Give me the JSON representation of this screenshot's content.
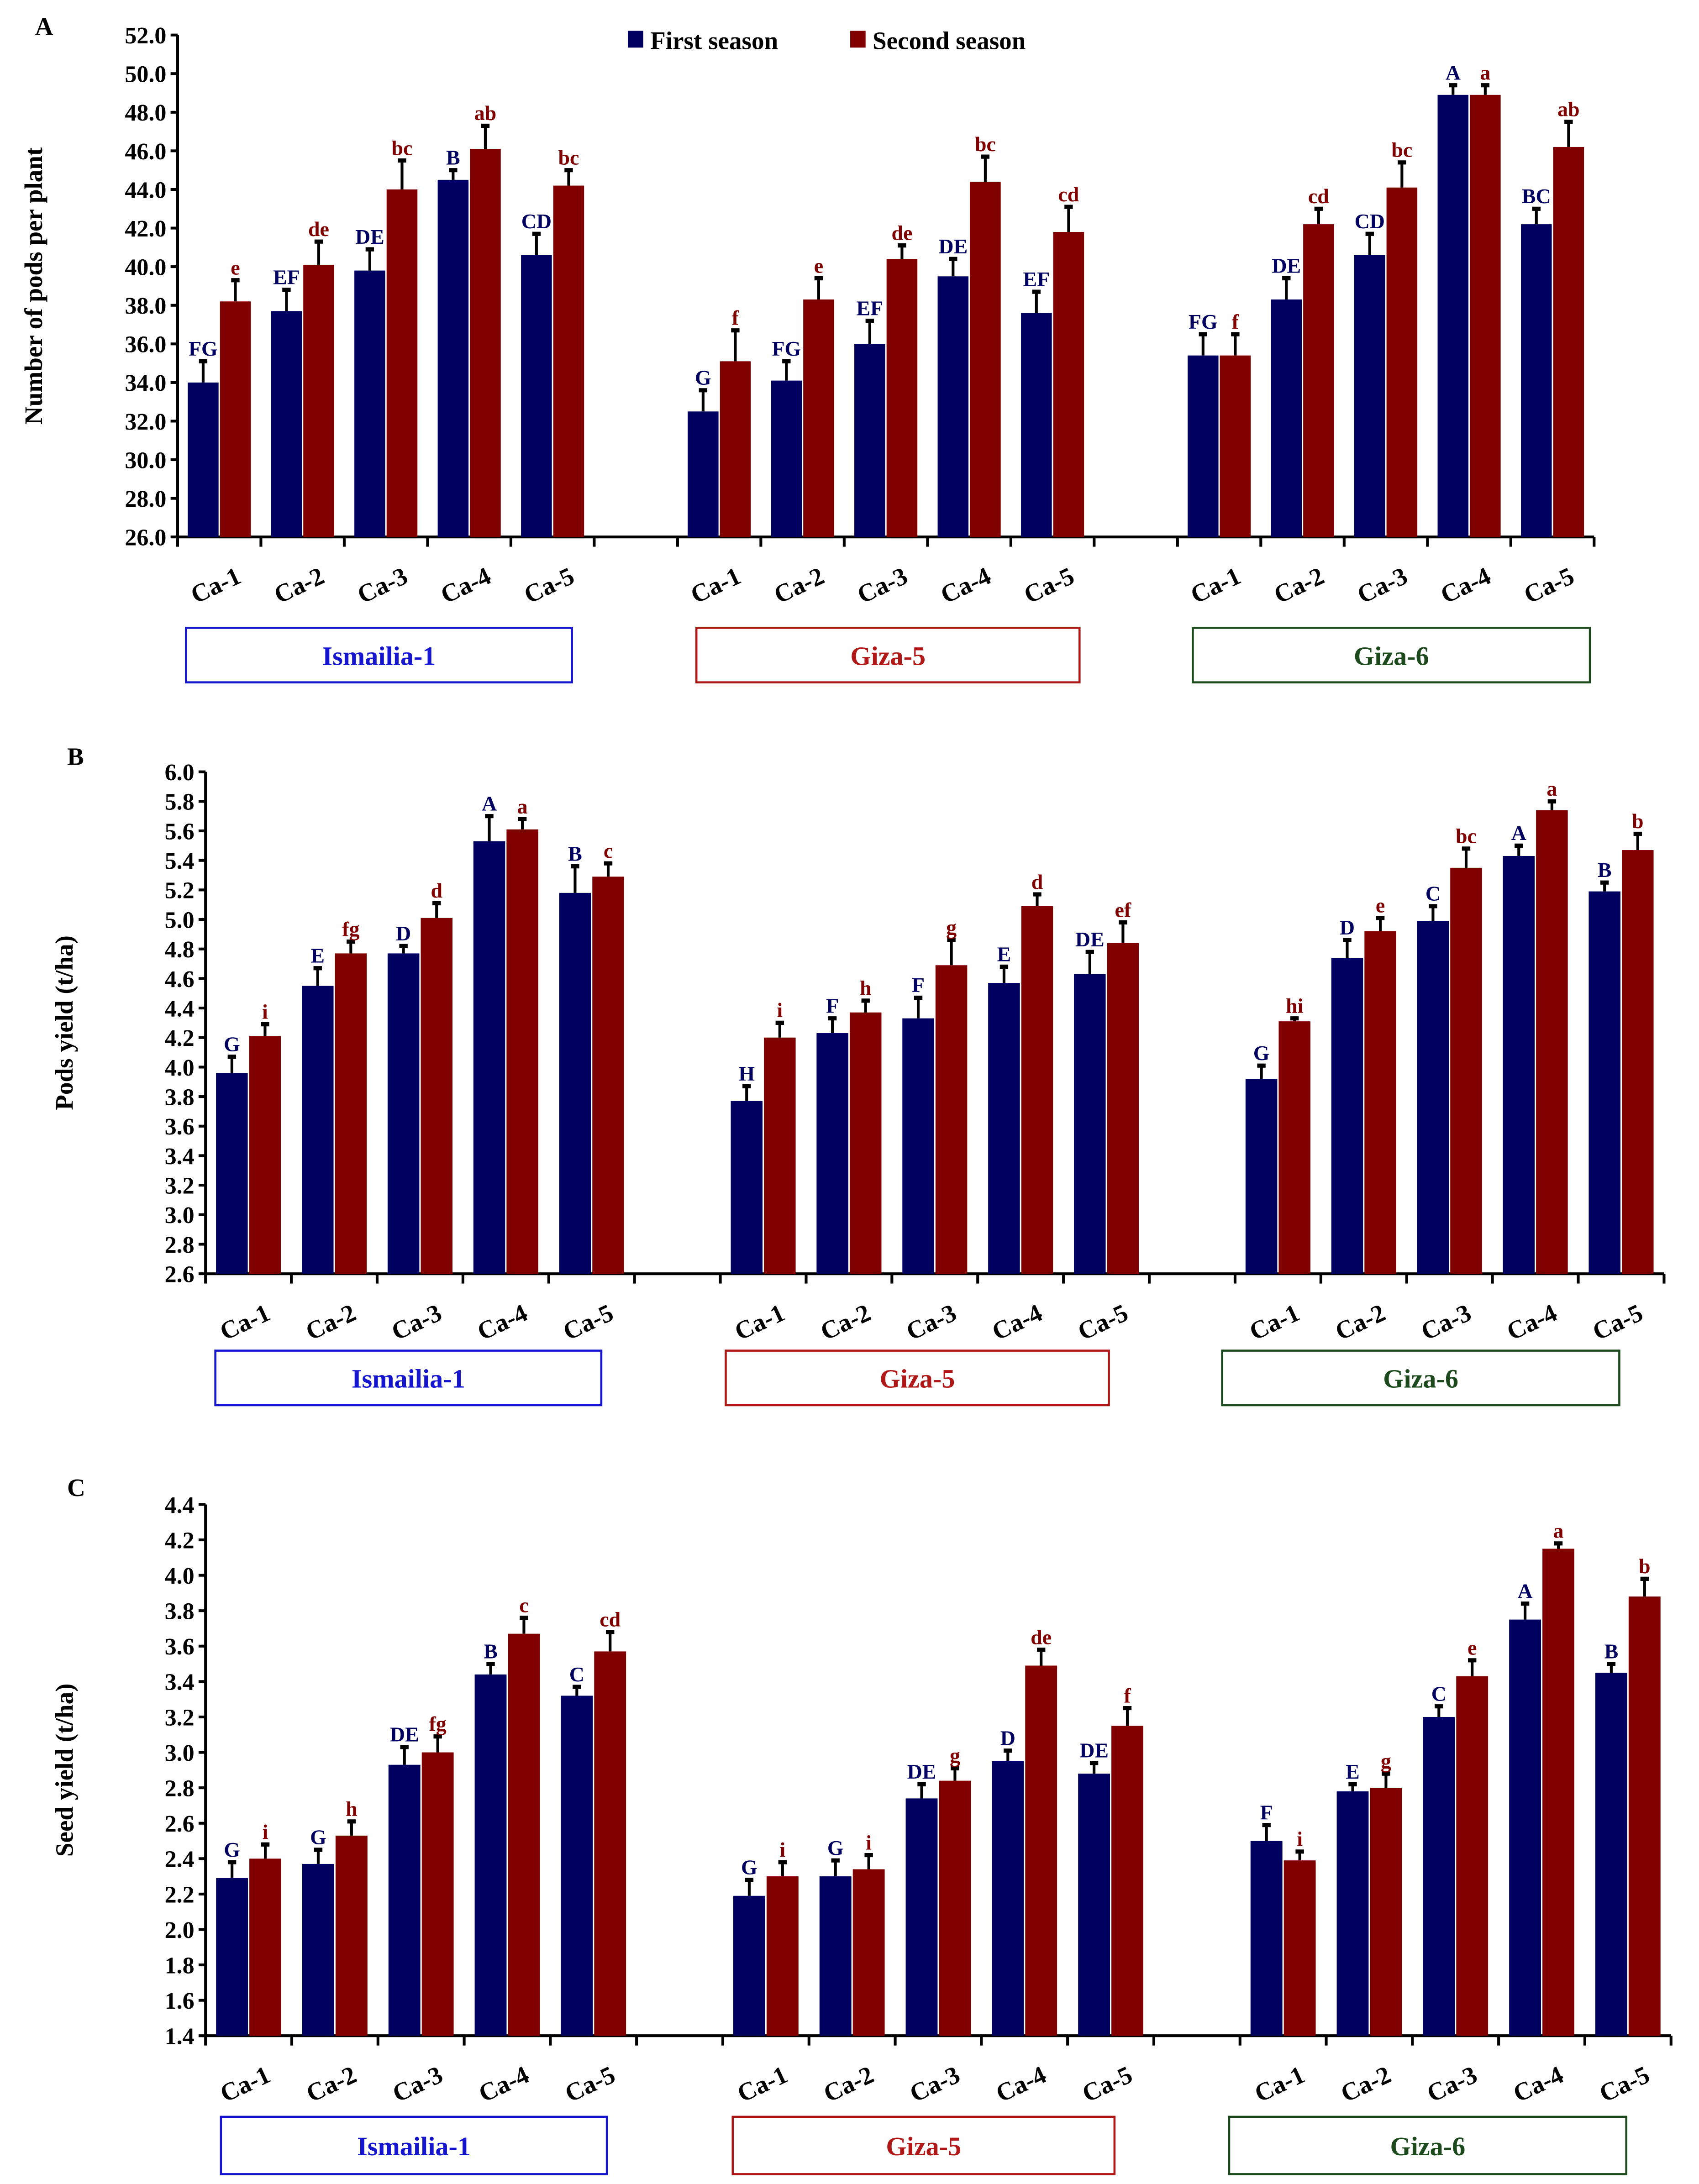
{
  "legend": {
    "first": "First season",
    "second": "Second season"
  },
  "colors": {
    "first": "#000060",
    "second": "#800000",
    "ismailia": "#1515d0",
    "giza5": "#b01818",
    "giza6": "#1c4a1c"
  },
  "chart_data": [
    {
      "type": "bar",
      "panel": "A",
      "ylabel": "Number of pods per plant",
      "ylim": [
        26,
        52
      ],
      "ystep": 2,
      "ydecimals": 1,
      "categories": [
        "Ca-1",
        "Ca-2",
        "Ca-3",
        "Ca-4",
        "Ca-5"
      ],
      "groups": [
        {
          "name": "Ismailia-1",
          "first": [
            34.0,
            37.7,
            39.8,
            44.5,
            40.6
          ],
          "first_err": [
            1.1,
            1.1,
            1.1,
            0.5,
            1.1
          ],
          "first_letters": [
            "FG",
            "EF",
            "DE",
            "B",
            "CD"
          ],
          "second": [
            38.2,
            40.1,
            44.0,
            46.1,
            44.2
          ],
          "second_err": [
            1.1,
            1.2,
            1.5,
            1.2,
            0.8
          ],
          "second_letters": [
            "e",
            "de",
            "bc",
            "ab",
            "bc"
          ]
        },
        {
          "name": "Giza-5",
          "first": [
            32.5,
            34.1,
            36.0,
            39.5,
            37.6
          ],
          "first_err": [
            1.1,
            1.0,
            1.2,
            0.9,
            1.1
          ],
          "first_letters": [
            "G",
            "FG",
            "EF",
            "DE",
            "EF"
          ],
          "second": [
            35.1,
            38.3,
            40.4,
            44.4,
            41.8
          ],
          "second_err": [
            1.6,
            1.1,
            0.7,
            1.3,
            1.3
          ],
          "second_letters": [
            "f",
            "e",
            "de",
            "bc",
            "cd"
          ]
        },
        {
          "name": "Giza-6",
          "first": [
            35.4,
            38.3,
            40.6,
            48.9,
            42.2
          ],
          "first_err": [
            1.1,
            1.1,
            1.1,
            0.5,
            0.8
          ],
          "first_letters": [
            "FG",
            "DE",
            "CD",
            "A",
            "BC"
          ],
          "second": [
            35.4,
            42.2,
            44.1,
            48.9,
            46.2
          ],
          "second_err": [
            1.1,
            0.8,
            1.3,
            0.5,
            1.3
          ],
          "second_letters": [
            "f",
            "cd",
            "bc",
            "a",
            "ab"
          ]
        }
      ]
    },
    {
      "type": "bar",
      "panel": "B",
      "ylabel": "Pods yield (t/ha)",
      "ylim": [
        2.6,
        6.0
      ],
      "ystep": 0.2,
      "ydecimals": 1,
      "categories": [
        "Ca-1",
        "Ca-2",
        "Ca-3",
        "Ca-4",
        "Ca-5"
      ],
      "groups": [
        {
          "name": "Ismailia-1",
          "first": [
            3.96,
            4.55,
            4.77,
            5.53,
            5.18
          ],
          "first_err": [
            0.11,
            0.12,
            0.05,
            0.17,
            0.18
          ],
          "first_letters": [
            "G",
            "E",
            "D",
            "A",
            "B"
          ],
          "second": [
            4.21,
            4.77,
            5.01,
            5.61,
            5.29
          ],
          "second_err": [
            0.08,
            0.08,
            0.1,
            0.07,
            0.09
          ],
          "second_letters": [
            "i",
            "fg",
            "d",
            "a",
            "c"
          ]
        },
        {
          "name": "Giza-5",
          "first": [
            3.77,
            4.23,
            4.33,
            4.57,
            4.63
          ],
          "first_err": [
            0.1,
            0.1,
            0.14,
            0.11,
            0.15
          ],
          "first_letters": [
            "H",
            "F",
            "F",
            "E",
            "DE"
          ],
          "second": [
            4.2,
            4.37,
            4.69,
            5.09,
            4.84
          ],
          "second_err": [
            0.1,
            0.08,
            0.17,
            0.08,
            0.14
          ],
          "second_letters": [
            "i",
            "h",
            "g",
            "d",
            "ef"
          ]
        },
        {
          "name": "Giza-6",
          "first": [
            3.92,
            4.74,
            4.99,
            5.43,
            5.19
          ],
          "first_err": [
            0.09,
            0.12,
            0.1,
            0.07,
            0.06
          ],
          "first_letters": [
            "G",
            "D",
            "C",
            "A",
            "B"
          ],
          "second": [
            4.31,
            4.92,
            5.35,
            5.74,
            5.47
          ],
          "second_err": [
            0.02,
            0.09,
            0.13,
            0.06,
            0.11
          ],
          "second_letters": [
            "hi",
            "e",
            "bc",
            "a",
            "b"
          ]
        }
      ]
    },
    {
      "type": "bar",
      "panel": "C",
      "ylabel": "Seed yield (t/ha)",
      "ylim": [
        1.4,
        4.4
      ],
      "ystep": 0.2,
      "ydecimals": 1,
      "categories": [
        "Ca-1",
        "Ca-2",
        "Ca-3",
        "Ca-4",
        "Ca-5"
      ],
      "groups": [
        {
          "name": "Ismailia-1",
          "first": [
            2.29,
            2.37,
            2.93,
            3.44,
            3.32
          ],
          "first_err": [
            0.09,
            0.08,
            0.1,
            0.06,
            0.05
          ],
          "first_letters": [
            "G",
            "G",
            "DE",
            "B",
            "C"
          ],
          "second": [
            2.4,
            2.53,
            3.0,
            3.67,
            3.57
          ],
          "second_err": [
            0.08,
            0.08,
            0.09,
            0.09,
            0.11
          ],
          "second_letters": [
            "i",
            "h",
            "fg",
            "c",
            "cd"
          ]
        },
        {
          "name": "Giza-5",
          "first": [
            2.19,
            2.3,
            2.74,
            2.95,
            2.88
          ],
          "first_err": [
            0.09,
            0.09,
            0.08,
            0.06,
            0.06
          ],
          "first_letters": [
            "G",
            "G",
            "DE",
            "D",
            "DE"
          ],
          "second": [
            2.3,
            2.34,
            2.84,
            3.49,
            3.15
          ],
          "second_err": [
            0.08,
            0.08,
            0.07,
            0.09,
            0.1
          ],
          "second_letters": [
            "i",
            "i",
            "g",
            "de",
            "f"
          ]
        },
        {
          "name": "Giza-6",
          "first": [
            2.5,
            2.78,
            3.2,
            3.75,
            3.45
          ],
          "first_err": [
            0.09,
            0.04,
            0.06,
            0.09,
            0.05
          ],
          "first_letters": [
            "F",
            "E",
            "C",
            "A",
            "B"
          ],
          "second": [
            2.39,
            2.8,
            3.43,
            4.15,
            3.88
          ],
          "second_err": [
            0.05,
            0.08,
            0.09,
            0.03,
            0.1
          ],
          "second_letters": [
            "i",
            "g",
            "e",
            "a",
            "b"
          ]
        }
      ]
    }
  ]
}
